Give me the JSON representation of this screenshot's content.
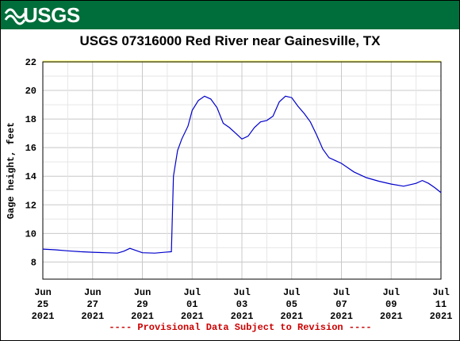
{
  "header": {
    "logo_text": "USGS"
  },
  "chart_data": {
    "type": "line",
    "title": "USGS 07316000 Red River near Gainesville, TX",
    "xlabel": "",
    "ylabel": "Gage height, feet",
    "ylim": [
      6.8,
      22
    ],
    "y_ticks": [
      "8",
      "10",
      "12",
      "14",
      "16",
      "18",
      "20",
      "22"
    ],
    "x_ticks": [
      {
        "label": [
          "Jun",
          "25",
          "2021"
        ]
      },
      {
        "label": [
          "Jun",
          "27",
          "2021"
        ]
      },
      {
        "label": [
          "Jun",
          "29",
          "2021"
        ]
      },
      {
        "label": [
          "Jul",
          "01",
          "2021"
        ]
      },
      {
        "label": [
          "Jul",
          "03",
          "2021"
        ]
      },
      {
        "label": [
          "Jul",
          "05",
          "2021"
        ]
      },
      {
        "label": [
          "Jul",
          "07",
          "2021"
        ]
      },
      {
        "label": [
          "Jul",
          "09",
          "2021"
        ]
      },
      {
        "label": [
          "Jul",
          "11",
          "2021"
        ]
      }
    ],
    "grid": true,
    "series": [
      {
        "color": "#0000cc",
        "x": [
          "2021-06-25",
          "2021-06-25T12:00",
          "2021-06-26",
          "2021-06-26T12:00",
          "2021-06-27",
          "2021-06-27T12:00",
          "2021-06-28",
          "2021-06-28T06:00",
          "2021-06-28T12:00",
          "2021-06-28T18:00",
          "2021-06-29",
          "2021-06-29T12:00",
          "2021-06-30",
          "2021-06-30T04:00",
          "2021-06-30T06:00",
          "2021-06-30T10:00",
          "2021-06-30T14:00",
          "2021-06-30T20:00",
          "2021-07-01",
          "2021-07-01T06:00",
          "2021-07-01T12:00",
          "2021-07-01T18:00",
          "2021-07-02",
          "2021-07-02T06:00",
          "2021-07-02T12:00",
          "2021-07-02T18:00",
          "2021-07-03",
          "2021-07-03T06:00",
          "2021-07-03T12:00",
          "2021-07-03T18:00",
          "2021-07-04",
          "2021-07-04T06:00",
          "2021-07-04T12:00",
          "2021-07-04T18:00",
          "2021-07-05",
          "2021-07-05T06:00",
          "2021-07-05T12:00",
          "2021-07-05T18:00",
          "2021-07-06",
          "2021-07-06T06:00",
          "2021-07-06T12:00",
          "2021-07-06T18:00",
          "2021-07-07",
          "2021-07-07T06:00",
          "2021-07-07T12:00",
          "2021-07-08",
          "2021-07-08T12:00",
          "2021-07-09",
          "2021-07-09T12:00",
          "2021-07-10",
          "2021-07-10T06:00",
          "2021-07-10T12:00",
          "2021-07-10T18:00",
          "2021-07-11"
        ],
        "y": [
          8.9,
          8.85,
          8.78,
          8.72,
          8.68,
          8.65,
          8.62,
          8.75,
          8.95,
          8.8,
          8.65,
          8.62,
          8.7,
          8.72,
          14.0,
          15.8,
          16.6,
          17.5,
          18.6,
          19.3,
          19.6,
          19.4,
          18.8,
          17.7,
          17.4,
          17.0,
          16.6,
          16.8,
          17.4,
          17.8,
          17.9,
          18.2,
          19.2,
          19.6,
          19.5,
          18.9,
          18.4,
          17.8,
          16.9,
          15.9,
          15.3,
          15.1,
          14.9,
          14.6,
          14.3,
          13.9,
          13.65,
          13.45,
          13.3,
          13.5,
          13.7,
          13.5,
          13.2,
          12.85
        ]
      }
    ],
    "footnote": "---- Provisional Data Subject to Revision ----"
  }
}
